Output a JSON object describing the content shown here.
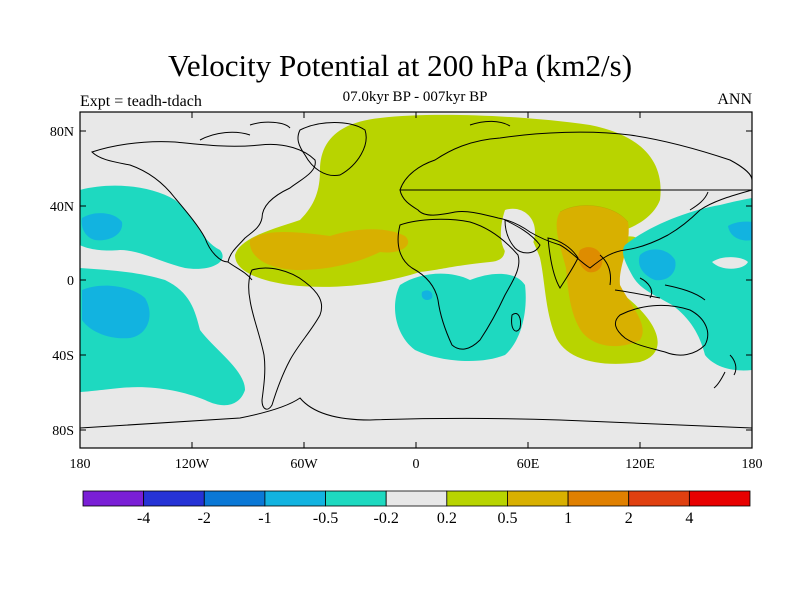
{
  "title": "Velocity Potential at 200 hPa (km2/s)",
  "subtitle": "07.0kyr BP - 007kyr BP",
  "experiment_label": "Expt = teadh-tdach",
  "season_label": "ANN",
  "map": {
    "projection": "cylindrical equidistant",
    "lon_range": [
      -180,
      180
    ],
    "lat_range": [
      -90,
      90
    ],
    "ocean_land_background": "#e8e8e8",
    "x_ticks": [
      "180",
      "120W",
      "60W",
      "0",
      "60E",
      "120E",
      "180"
    ],
    "y_ticks": [
      "80N",
      "40N",
      "0",
      "40S",
      "80S"
    ]
  },
  "colorbar": {
    "colors": [
      "#7a1fd6",
      "#2633d6",
      "#0a78d6",
      "#12b3e0",
      "#1ed9c0",
      "#e8e8e8",
      "#b8d400",
      "#d8b000",
      "#e08000",
      "#e04010",
      "#e80000"
    ],
    "labels": [
      "-4",
      "-2",
      "-1",
      "-0.5",
      "-0.2",
      "0.2",
      "0.5",
      "1",
      "2",
      "4"
    ]
  },
  "regions": {
    "colors": {
      "light_green": "#b8d400",
      "gold": "#d8b000",
      "orange": "#e08000",
      "cyan": "#1ed9c0",
      "blue": "#12b3e0"
    }
  }
}
